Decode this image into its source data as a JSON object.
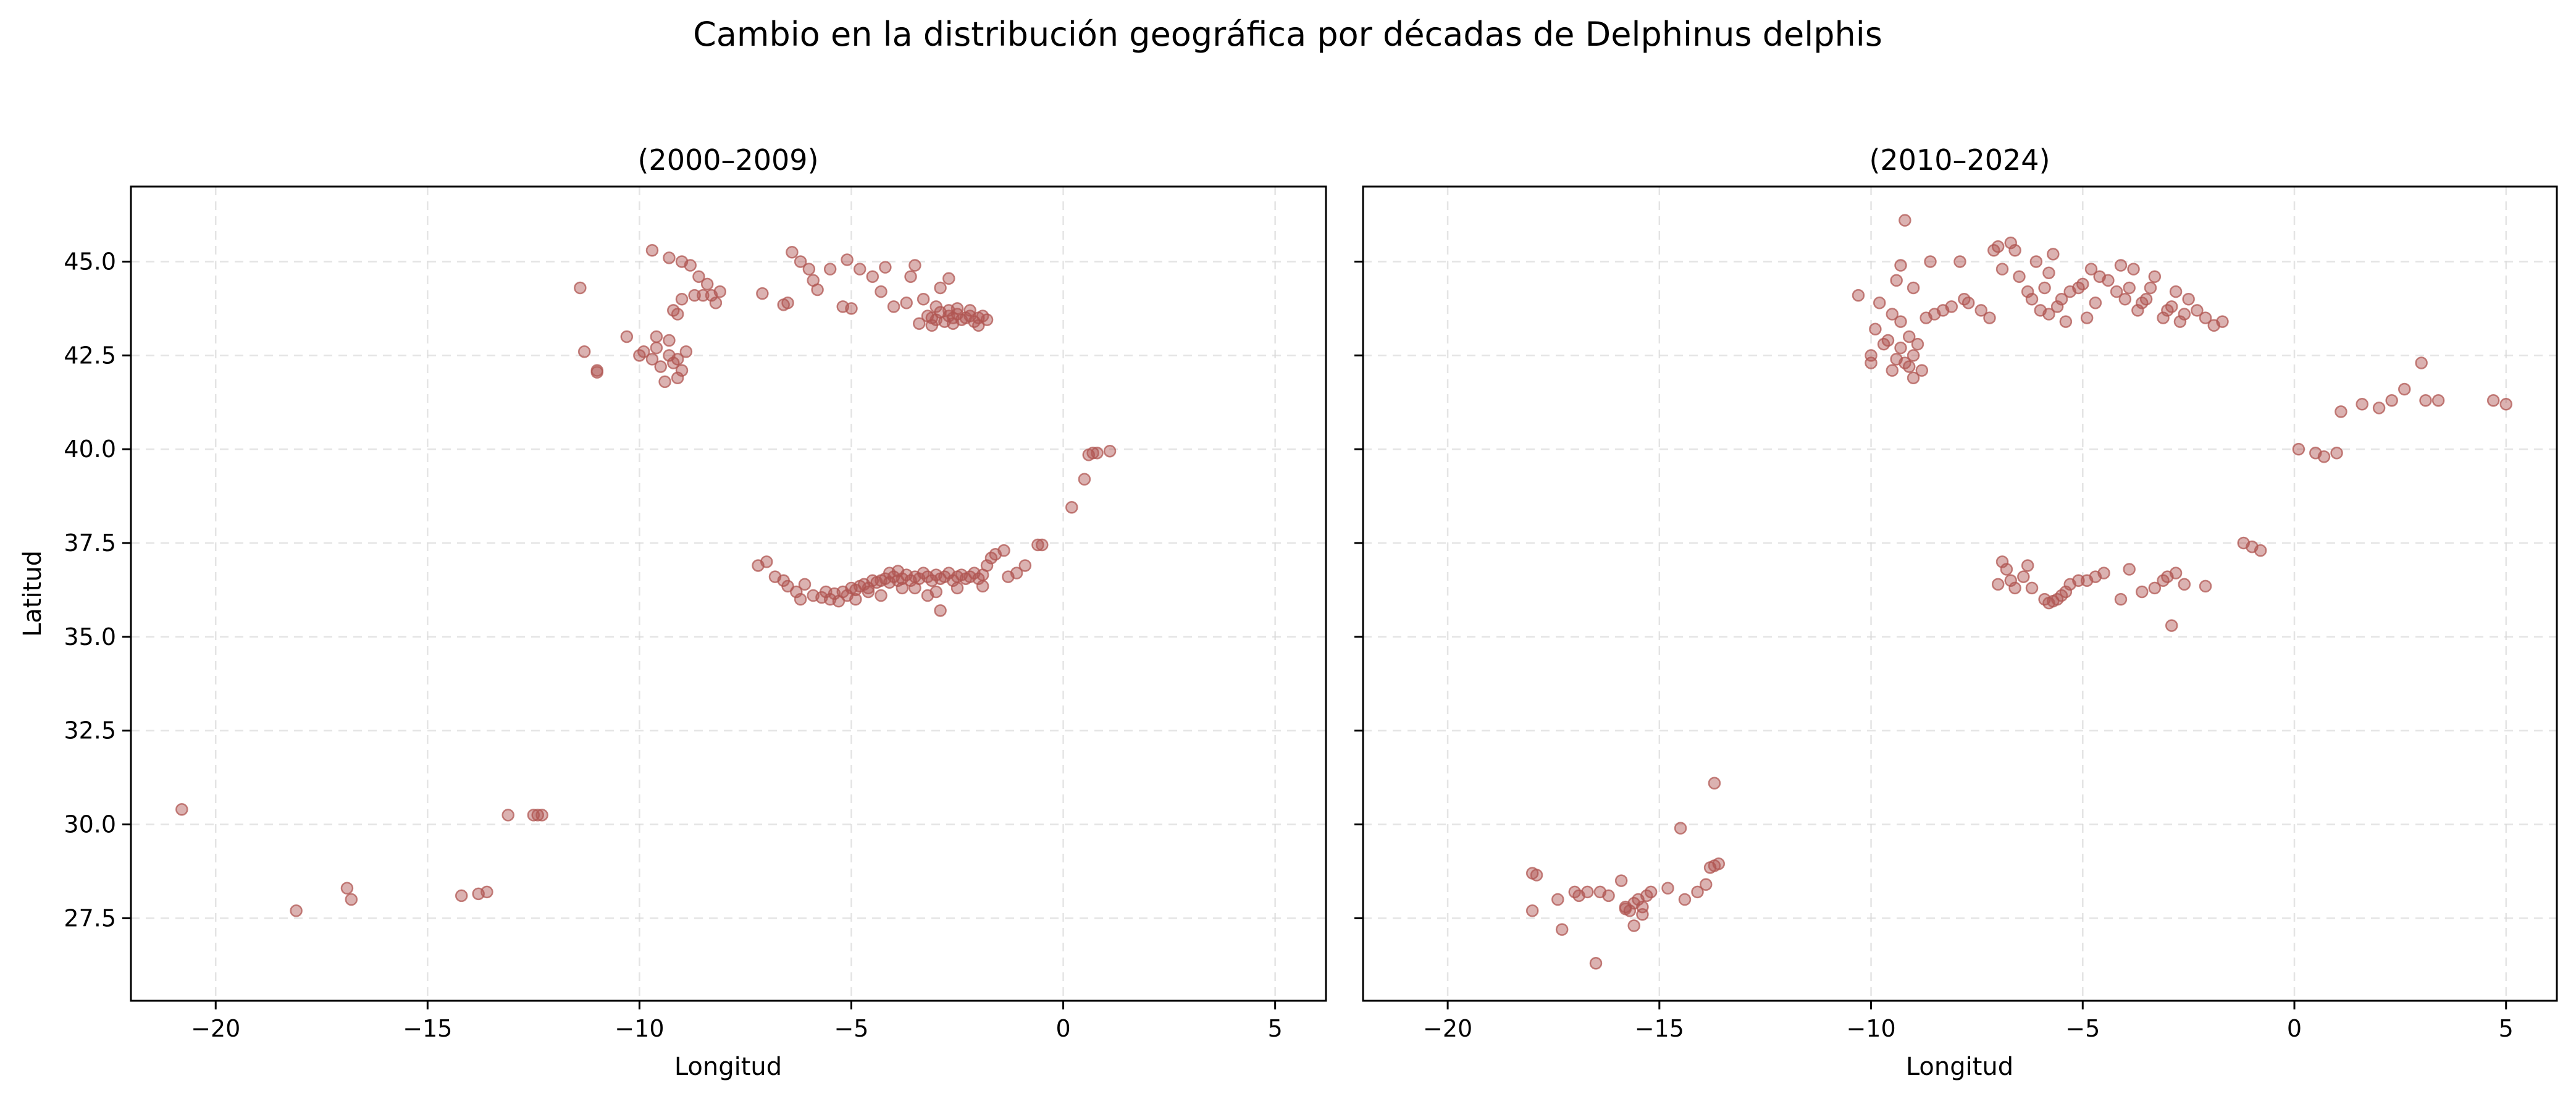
{
  "figure": {
    "title": "Cambio en la distribución geográfica por décadas de Delphinus delphis"
  },
  "chart_data": [
    {
      "type": "scatter",
      "title": "(2000–2009)",
      "xlabel": "Longitud",
      "ylabel": "Latitud",
      "xlim": [
        -22.0,
        6.2
      ],
      "ylim": [
        25.3,
        47.0
      ],
      "xticks": [
        -20,
        -15,
        -10,
        -5,
        0,
        5
      ],
      "xtick_labels": [
        "−20",
        "−15",
        "−10",
        "−5",
        "0",
        "5"
      ],
      "yticks": [
        27.5,
        30.0,
        32.5,
        35.0,
        37.5,
        40.0,
        42.5,
        45.0
      ],
      "ytick_labels": [
        "27.5",
        "30.0",
        "32.5",
        "35.0",
        "37.5",
        "40.0",
        "42.5",
        "45.0"
      ],
      "grid": true,
      "color": "#b05552",
      "points": [
        [
          -20.8,
          30.4
        ],
        [
          -18.1,
          27.7
        ],
        [
          -16.9,
          28.3
        ],
        [
          -16.8,
          28.0
        ],
        [
          -14.2,
          28.1
        ],
        [
          -13.8,
          28.15
        ],
        [
          -13.6,
          28.2
        ],
        [
          -13.1,
          30.25
        ],
        [
          -12.5,
          30.25
        ],
        [
          -12.4,
          30.25
        ],
        [
          -12.3,
          30.25
        ],
        [
          -11.4,
          44.3
        ],
        [
          -11.3,
          42.6
        ],
        [
          -11.0,
          42.1
        ],
        [
          -11.0,
          42.05
        ],
        [
          -10.3,
          43.0
        ],
        [
          -10.0,
          42.5
        ],
        [
          -9.9,
          42.6
        ],
        [
          -9.7,
          42.4
        ],
        [
          -9.6,
          42.7
        ],
        [
          -9.5,
          42.2
        ],
        [
          -9.4,
          41.8
        ],
        [
          -9.3,
          42.5
        ],
        [
          -9.2,
          42.3
        ],
        [
          -9.1,
          41.9
        ],
        [
          -9.0,
          42.1
        ],
        [
          -8.9,
          42.6
        ],
        [
          -9.1,
          42.4
        ],
        [
          -9.3,
          42.9
        ],
        [
          -9.6,
          43.0
        ],
        [
          -9.7,
          45.3
        ],
        [
          -9.3,
          45.1
        ],
        [
          -9.0,
          45.0
        ],
        [
          -8.8,
          44.9
        ],
        [
          -8.6,
          44.6
        ],
        [
          -8.4,
          44.4
        ],
        [
          -8.3,
          44.1
        ],
        [
          -8.5,
          44.1
        ],
        [
          -8.7,
          44.1
        ],
        [
          -9.0,
          44.0
        ],
        [
          -9.2,
          43.7
        ],
        [
          -9.1,
          43.6
        ],
        [
          -8.2,
          43.9
        ],
        [
          -8.1,
          44.2
        ],
        [
          -7.1,
          44.15
        ],
        [
          -6.6,
          43.85
        ],
        [
          -6.5,
          43.9
        ],
        [
          -6.4,
          45.25
        ],
        [
          -6.2,
          45.0
        ],
        [
          -6.0,
          44.8
        ],
        [
          -5.9,
          44.5
        ],
        [
          -5.8,
          44.25
        ],
        [
          -5.5,
          44.8
        ],
        [
          -5.2,
          43.8
        ],
        [
          -5.1,
          45.05
        ],
        [
          -5.0,
          43.75
        ],
        [
          -4.8,
          44.8
        ],
        [
          -4.5,
          44.6
        ],
        [
          -4.3,
          44.2
        ],
        [
          -4.2,
          44.85
        ],
        [
          -4.0,
          43.8
        ],
        [
          -3.7,
          43.9
        ],
        [
          -3.6,
          44.6
        ],
        [
          -3.5,
          44.9
        ],
        [
          -3.3,
          44.0
        ],
        [
          -3.2,
          43.55
        ],
        [
          -3.1,
          43.5
        ],
        [
          -3.0,
          43.45
        ],
        [
          -2.9,
          43.65
        ],
        [
          -2.8,
          43.4
        ],
        [
          -2.7,
          43.55
        ],
        [
          -2.6,
          43.5
        ],
        [
          -2.5,
          43.6
        ],
        [
          -2.4,
          43.45
        ],
        [
          -2.3,
          43.5
        ],
        [
          -2.2,
          43.55
        ],
        [
          -2.1,
          43.4
        ],
        [
          -2.0,
          43.5
        ],
        [
          -1.9,
          43.55
        ],
        [
          -1.8,
          43.45
        ],
        [
          -3.0,
          43.8
        ],
        [
          -2.7,
          43.7
        ],
        [
          -2.5,
          43.75
        ],
        [
          -2.2,
          43.7
        ],
        [
          -2.9,
          44.3
        ],
        [
          -2.7,
          44.55
        ],
        [
          -3.4,
          43.35
        ],
        [
          -3.1,
          43.3
        ],
        [
          -2.6,
          43.35
        ],
        [
          -2.0,
          43.3
        ],
        [
          -7.2,
          36.9
        ],
        [
          -7.0,
          37.0
        ],
        [
          -6.8,
          36.6
        ],
        [
          -6.6,
          36.5
        ],
        [
          -6.5,
          36.35
        ],
        [
          -6.3,
          36.2
        ],
        [
          -6.2,
          36.0
        ],
        [
          -6.1,
          36.4
        ],
        [
          -5.9,
          36.1
        ],
        [
          -5.7,
          36.05
        ],
        [
          -5.5,
          36.0
        ],
        [
          -5.4,
          36.15
        ],
        [
          -5.3,
          35.95
        ],
        [
          -5.2,
          36.2
        ],
        [
          -5.1,
          36.1
        ],
        [
          -5.0,
          36.3
        ],
        [
          -4.9,
          36.25
        ],
        [
          -4.8,
          36.35
        ],
        [
          -4.7,
          36.4
        ],
        [
          -4.6,
          36.3
        ],
        [
          -4.5,
          36.5
        ],
        [
          -4.4,
          36.45
        ],
        [
          -4.3,
          36.5
        ],
        [
          -4.2,
          36.55
        ],
        [
          -4.1,
          36.45
        ],
        [
          -4.0,
          36.6
        ],
        [
          -3.9,
          36.5
        ],
        [
          -3.8,
          36.55
        ],
        [
          -3.7,
          36.65
        ],
        [
          -3.6,
          36.5
        ],
        [
          -3.5,
          36.6
        ],
        [
          -3.4,
          36.55
        ],
        [
          -3.3,
          36.7
        ],
        [
          -3.2,
          36.6
        ],
        [
          -3.1,
          36.5
        ],
        [
          -3.0,
          36.65
        ],
        [
          -2.9,
          36.55
        ],
        [
          -2.8,
          36.6
        ],
        [
          -2.7,
          36.7
        ],
        [
          -2.6,
          36.5
        ],
        [
          -2.5,
          36.6
        ],
        [
          -2.4,
          36.65
        ],
        [
          -2.3,
          36.55
        ],
        [
          -2.2,
          36.6
        ],
        [
          -2.1,
          36.7
        ],
        [
          -2.0,
          36.55
        ],
        [
          -1.9,
          36.65
        ],
        [
          -1.8,
          36.9
        ],
        [
          -1.7,
          37.1
        ],
        [
          -1.6,
          37.2
        ],
        [
          -1.4,
          37.3
        ],
        [
          -1.3,
          36.6
        ],
        [
          -1.1,
          36.7
        ],
        [
          -0.9,
          36.9
        ],
        [
          -0.6,
          37.45
        ],
        [
          -0.5,
          37.45
        ],
        [
          -4.6,
          36.2
        ],
        [
          -4.3,
          36.1
        ],
        [
          -3.8,
          36.3
        ],
        [
          -3.5,
          36.3
        ],
        [
          -3.2,
          36.1
        ],
        [
          -3.0,
          36.2
        ],
        [
          -2.9,
          35.7
        ],
        [
          -2.5,
          36.3
        ],
        [
          -1.9,
          36.35
        ],
        [
          -5.6,
          36.2
        ],
        [
          -4.9,
          36.0
        ],
        [
          -4.1,
          36.7
        ],
        [
          -3.9,
          36.75
        ],
        [
          0.2,
          38.45
        ],
        [
          0.5,
          39.2
        ],
        [
          0.6,
          39.85
        ],
        [
          0.7,
          39.9
        ],
        [
          0.8,
          39.9
        ],
        [
          1.1,
          39.95
        ]
      ]
    },
    {
      "type": "scatter",
      "title": "(2010–2024)",
      "xlabel": "Longitud",
      "ylabel": "",
      "xlim": [
        -22.0,
        6.2
      ],
      "ylim": [
        25.3,
        47.0
      ],
      "xticks": [
        -20,
        -15,
        -10,
        -5,
        0,
        5
      ],
      "xtick_labels": [
        "−20",
        "−15",
        "−10",
        "−5",
        "0",
        "5"
      ],
      "yticks": [
        27.5,
        30.0,
        32.5,
        35.0,
        37.5,
        40.0,
        42.5,
        45.0
      ],
      "ytick_labels": [
        "27.5",
        "30.0",
        "32.5",
        "35.0",
        "37.5",
        "40.0",
        "42.5",
        "45.0"
      ],
      "grid": true,
      "color": "#b05552",
      "points": [
        [
          -18.0,
          28.7
        ],
        [
          -17.9,
          28.65
        ],
        [
          -18.0,
          27.7
        ],
        [
          -17.4,
          28.0
        ],
        [
          -17.3,
          27.2
        ],
        [
          -17.0,
          28.2
        ],
        [
          -16.9,
          28.1
        ],
        [
          -16.7,
          28.2
        ],
        [
          -16.5,
          26.3
        ],
        [
          -16.4,
          28.2
        ],
        [
          -16.2,
          28.1
        ],
        [
          -15.9,
          28.5
        ],
        [
          -15.8,
          27.8
        ],
        [
          -15.7,
          27.7
        ],
        [
          -15.6,
          27.3
        ],
        [
          -15.5,
          28.0
        ],
        [
          -15.4,
          27.8
        ],
        [
          -15.3,
          28.1
        ],
        [
          -15.2,
          28.2
        ],
        [
          -14.8,
          28.3
        ],
        [
          -14.5,
          29.9
        ],
        [
          -14.4,
          28.0
        ],
        [
          -14.1,
          28.2
        ],
        [
          -13.9,
          28.4
        ],
        [
          -13.8,
          28.85
        ],
        [
          -13.7,
          28.9
        ],
        [
          -13.6,
          28.95
        ],
        [
          -13.7,
          31.1
        ],
        [
          -15.8,
          27.75
        ],
        [
          -15.6,
          27.9
        ],
        [
          -15.4,
          27.6
        ],
        [
          -10.3,
          44.1
        ],
        [
          -10.0,
          42.3
        ],
        [
          -10.0,
          42.5
        ],
        [
          -9.9,
          43.2
        ],
        [
          -9.8,
          43.9
        ],
        [
          -9.7,
          42.8
        ],
        [
          -9.6,
          42.9
        ],
        [
          -9.5,
          42.1
        ],
        [
          -9.4,
          42.4
        ],
        [
          -9.3,
          42.7
        ],
        [
          -9.2,
          42.3
        ],
        [
          -9.1,
          42.2
        ],
        [
          -9.0,
          42.5
        ],
        [
          -9.0,
          41.9
        ],
        [
          -9.1,
          43.0
        ],
        [
          -8.9,
          42.8
        ],
        [
          -8.8,
          42.1
        ],
        [
          -9.3,
          43.4
        ],
        [
          -9.5,
          43.6
        ],
        [
          -9.4,
          44.5
        ],
        [
          -9.3,
          44.9
        ],
        [
          -9.2,
          46.1
        ],
        [
          -9.0,
          44.3
        ],
        [
          -8.7,
          43.5
        ],
        [
          -8.5,
          43.6
        ],
        [
          -8.3,
          43.7
        ],
        [
          -8.1,
          43.8
        ],
        [
          -7.9,
          45.0
        ],
        [
          -7.7,
          43.9
        ],
        [
          -7.4,
          43.7
        ],
        [
          -7.1,
          45.3
        ],
        [
          -7.0,
          45.4
        ],
        [
          -6.9,
          44.8
        ],
        [
          -6.7,
          45.5
        ],
        [
          -6.6,
          45.3
        ],
        [
          -6.5,
          44.6
        ],
        [
          -6.3,
          44.2
        ],
        [
          -6.1,
          45.0
        ],
        [
          -6.0,
          43.7
        ],
        [
          -5.9,
          44.3
        ],
        [
          -5.8,
          44.7
        ],
        [
          -5.7,
          45.2
        ],
        [
          -5.6,
          43.8
        ],
        [
          -5.5,
          44.0
        ],
        [
          -5.3,
          44.2
        ],
        [
          -5.1,
          44.3
        ],
        [
          -5.0,
          44.4
        ],
        [
          -4.9,
          43.5
        ],
        [
          -4.8,
          44.8
        ],
        [
          -4.7,
          43.9
        ],
        [
          -4.6,
          44.6
        ],
        [
          -4.4,
          44.5
        ],
        [
          -4.2,
          44.2
        ],
        [
          -4.1,
          44.9
        ],
        [
          -4.0,
          44.0
        ],
        [
          -3.9,
          44.3
        ],
        [
          -3.8,
          44.8
        ],
        [
          -3.7,
          43.7
        ],
        [
          -3.6,
          43.9
        ],
        [
          -3.5,
          44.0
        ],
        [
          -3.4,
          44.3
        ],
        [
          -3.3,
          44.6
        ],
        [
          -3.1,
          43.5
        ],
        [
          -3.0,
          43.7
        ],
        [
          -2.9,
          43.8
        ],
        [
          -2.8,
          44.2
        ],
        [
          -2.7,
          43.4
        ],
        [
          -2.6,
          43.6
        ],
        [
          -2.5,
          44.0
        ],
        [
          -2.3,
          43.7
        ],
        [
          -2.1,
          43.5
        ],
        [
          -1.9,
          43.3
        ],
        [
          -1.7,
          43.4
        ],
        [
          -5.8,
          43.6
        ],
        [
          -5.4,
          43.4
        ],
        [
          -6.2,
          44.0
        ],
        [
          -8.6,
          45.0
        ],
        [
          -7.8,
          44.0
        ],
        [
          -7.2,
          43.5
        ],
        [
          -7.0,
          36.4
        ],
        [
          -6.9,
          37.0
        ],
        [
          -6.8,
          36.8
        ],
        [
          -6.7,
          36.5
        ],
        [
          -6.6,
          36.3
        ],
        [
          -6.4,
          36.6
        ],
        [
          -6.3,
          36.9
        ],
        [
          -6.2,
          36.3
        ],
        [
          -5.9,
          36.0
        ],
        [
          -5.8,
          35.9
        ],
        [
          -5.7,
          35.95
        ],
        [
          -5.6,
          36.0
        ],
        [
          -5.5,
          36.1
        ],
        [
          -5.4,
          36.2
        ],
        [
          -5.3,
          36.4
        ],
        [
          -5.1,
          36.5
        ],
        [
          -4.9,
          36.5
        ],
        [
          -4.7,
          36.6
        ],
        [
          -4.5,
          36.7
        ],
        [
          -4.1,
          36.0
        ],
        [
          -3.9,
          36.8
        ],
        [
          -3.6,
          36.2
        ],
        [
          -3.3,
          36.3
        ],
        [
          -3.1,
          36.5
        ],
        [
          -3.0,
          36.6
        ],
        [
          -2.9,
          35.3
        ],
        [
          -2.8,
          36.7
        ],
        [
          -2.6,
          36.4
        ],
        [
          -2.1,
          36.35
        ],
        [
          -1.2,
          37.5
        ],
        [
          -1.0,
          37.4
        ],
        [
          -0.8,
          37.3
        ],
        [
          0.1,
          40.0
        ],
        [
          0.5,
          39.9
        ],
        [
          0.7,
          39.8
        ],
        [
          1.0,
          39.9
        ],
        [
          1.1,
          41.0
        ],
        [
          1.6,
          41.2
        ],
        [
          2.0,
          41.1
        ],
        [
          2.3,
          41.3
        ],
        [
          2.6,
          41.6
        ],
        [
          3.0,
          42.3
        ],
        [
          3.1,
          41.3
        ],
        [
          3.4,
          41.3
        ],
        [
          4.7,
          41.3
        ],
        [
          5.0,
          41.2
        ]
      ]
    }
  ]
}
